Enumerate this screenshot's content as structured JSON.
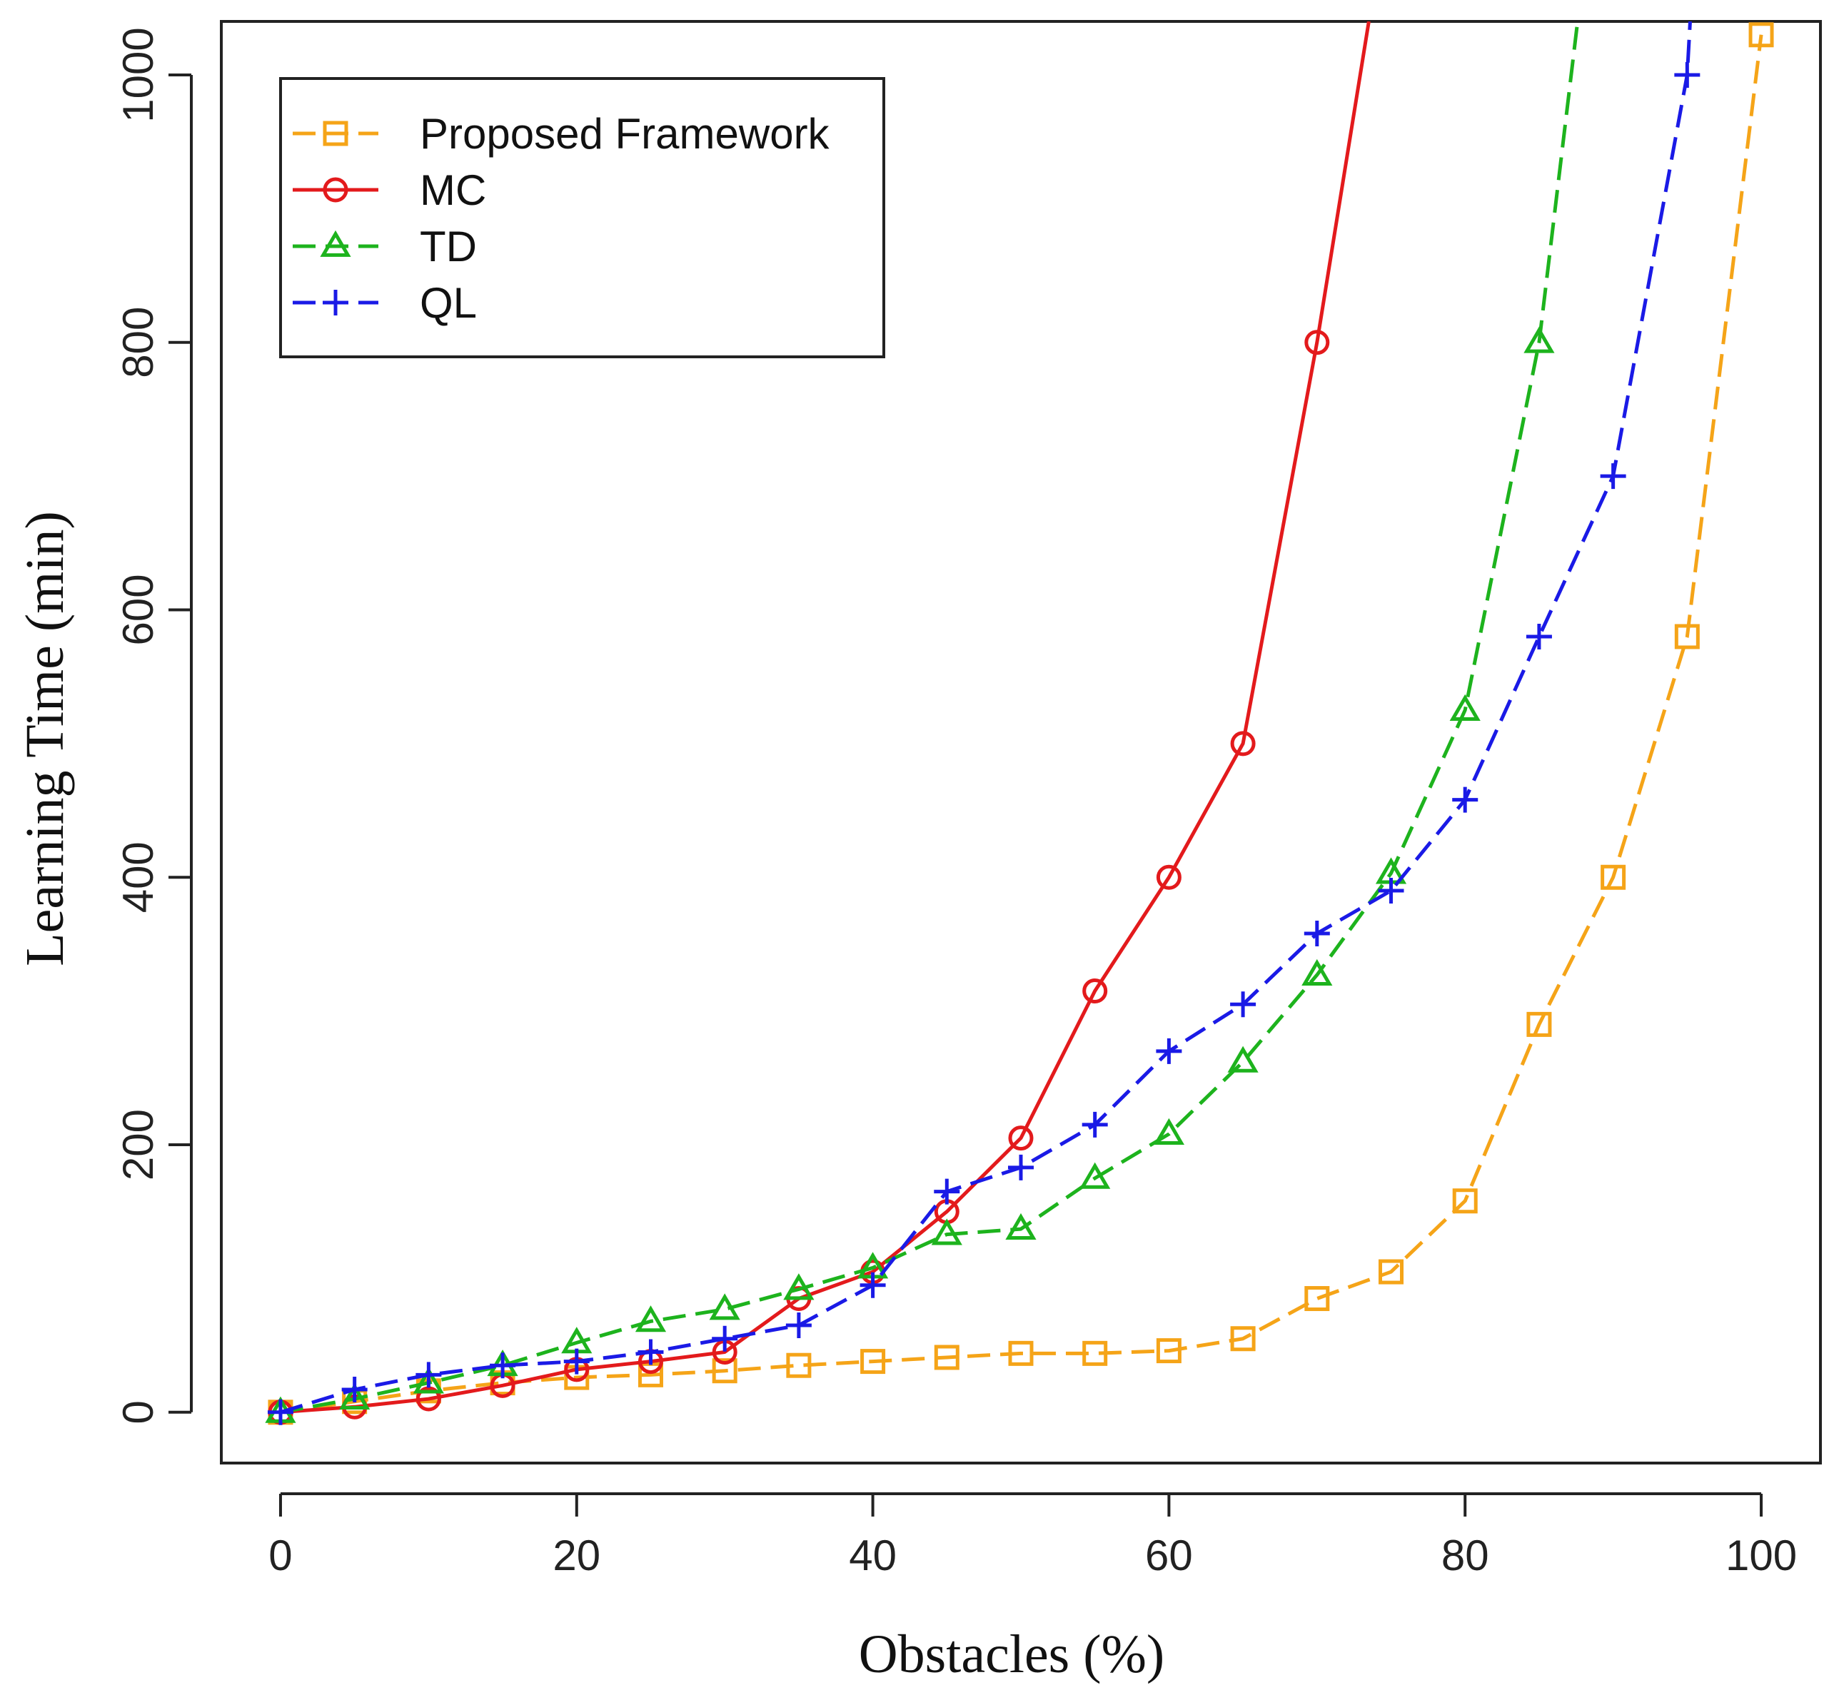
{
  "chart_data": {
    "type": "line",
    "title": "",
    "xlabel": "Obstacles (%)",
    "ylabel": "Learning Time (min)",
    "xlim": [
      -4,
      104
    ],
    "ylim": [
      -38,
      1040
    ],
    "xticks": [
      0,
      20,
      40,
      60,
      80,
      100
    ],
    "yticks": [
      0,
      200,
      400,
      600,
      800,
      1000
    ],
    "grid": false,
    "legend_position": "top-left",
    "series": [
      {
        "name": "Proposed Framework",
        "color": "#f5a418",
        "marker": "square",
        "dashed": true,
        "x": [
          0,
          5,
          10,
          15,
          20,
          25,
          30,
          35,
          40,
          45,
          50,
          55,
          60,
          65,
          70,
          75,
          80,
          85,
          90,
          95,
          100
        ],
        "y": [
          0,
          8,
          16,
          22,
          26,
          28,
          31,
          35,
          38,
          41,
          44,
          44,
          46,
          55,
          85,
          105,
          158,
          290,
          400,
          580,
          1030
        ]
      },
      {
        "name": "MC",
        "color": "#e31a1c",
        "marker": "circle",
        "dashed": false,
        "x": [
          0,
          5,
          10,
          15,
          20,
          25,
          30,
          35,
          40,
          45,
          50,
          55,
          60,
          65,
          70,
          73.5
        ],
        "y": [
          0,
          4,
          10,
          20,
          32,
          38,
          45,
          85,
          105,
          150,
          205,
          315,
          400,
          500,
          800,
          1040
        ]
      },
      {
        "name": "TD",
        "color": "#1db31d",
        "marker": "triangle",
        "dashed": true,
        "x": [
          0,
          5,
          10,
          15,
          20,
          25,
          30,
          35,
          40,
          45,
          50,
          55,
          60,
          65,
          70,
          75,
          80,
          85,
          87.6
        ],
        "y": [
          0,
          10,
          22,
          35,
          52,
          68,
          77,
          92,
          108,
          133,
          137,
          175,
          208,
          262,
          327,
          403,
          525,
          800,
          1040
        ]
      },
      {
        "name": "QL",
        "color": "#1a1ae6",
        "marker": "plus",
        "dashed": true,
        "x": [
          0,
          5,
          10,
          15,
          20,
          25,
          30,
          35,
          40,
          45,
          50,
          55,
          60,
          65,
          70,
          75,
          80,
          85,
          90,
          95,
          95.2
        ],
        "y": [
          0,
          17,
          28,
          35,
          38,
          45,
          55,
          65,
          95,
          165,
          183,
          215,
          270,
          305,
          358,
          390,
          458,
          580,
          700,
          1000,
          1040
        ]
      }
    ]
  }
}
